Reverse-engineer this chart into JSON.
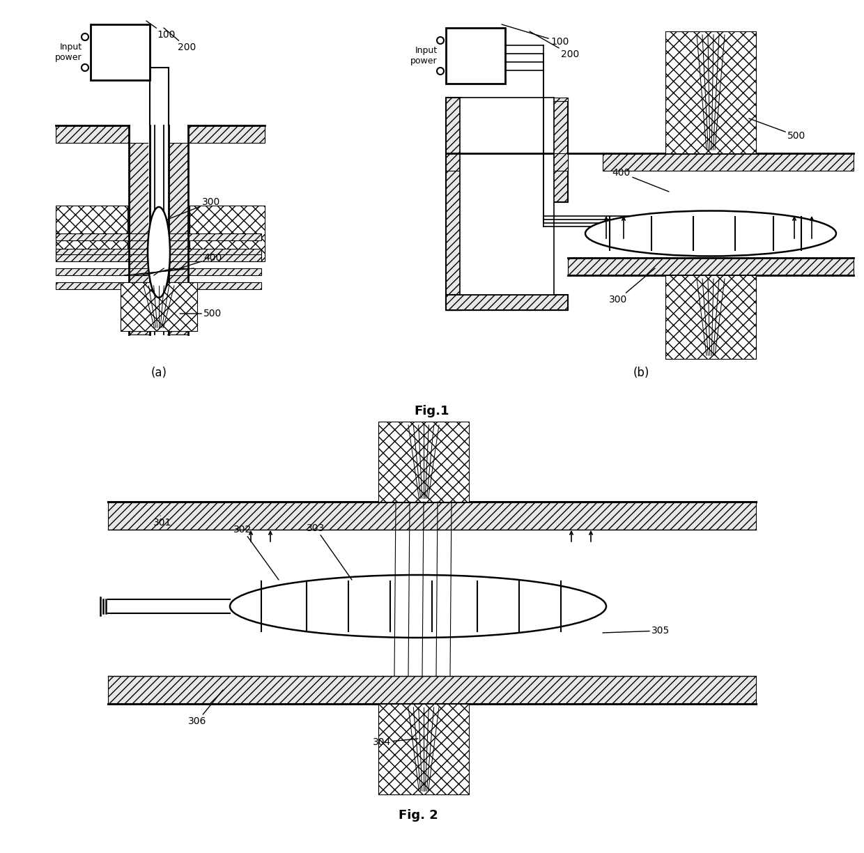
{
  "bg": "#ffffff",
  "lc": "#000000",
  "fig1": "Fig.1",
  "fig2": "Fig. 2",
  "la": "(a)",
  "lb": "(b)"
}
